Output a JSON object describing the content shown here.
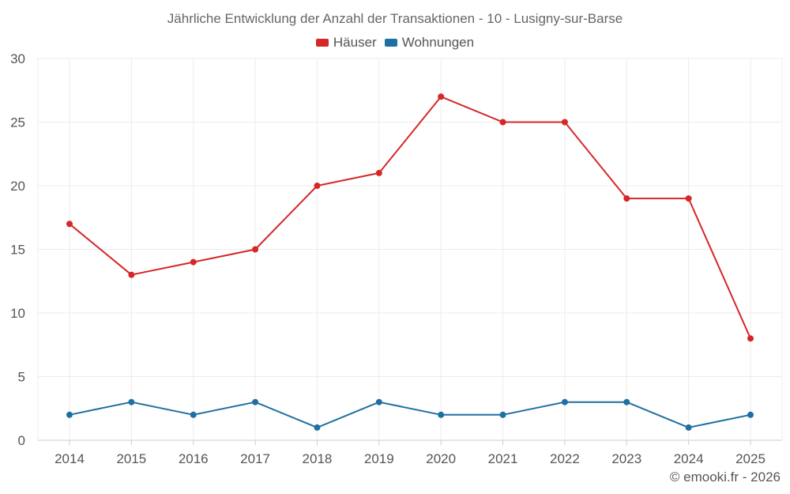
{
  "chart_data": {
    "type": "line",
    "title": "Jährliche Entwicklung der Anzahl der Transaktionen - 10 - Lusigny-sur-Barse",
    "categories": [
      "2014",
      "2015",
      "2016",
      "2017",
      "2018",
      "2019",
      "2020",
      "2021",
      "2022",
      "2023",
      "2024",
      "2025"
    ],
    "series": [
      {
        "name": "Häuser",
        "color": "#d62728",
        "values": [
          17,
          13,
          14,
          15,
          20,
          21,
          27,
          25,
          25,
          19,
          19,
          8
        ]
      },
      {
        "name": "Wohnungen",
        "color": "#1f6fa3",
        "values": [
          2,
          3,
          2,
          3,
          1,
          3,
          2,
          2,
          3,
          3,
          1,
          2
        ]
      }
    ],
    "ylim": [
      0,
      30
    ],
    "yticks": [
      0,
      5,
      10,
      15,
      20,
      25,
      30
    ],
    "xlabel": "",
    "ylabel": "",
    "grid": true,
    "legend_position": "top-center"
  },
  "credit": "© emooki.fr - 2026"
}
